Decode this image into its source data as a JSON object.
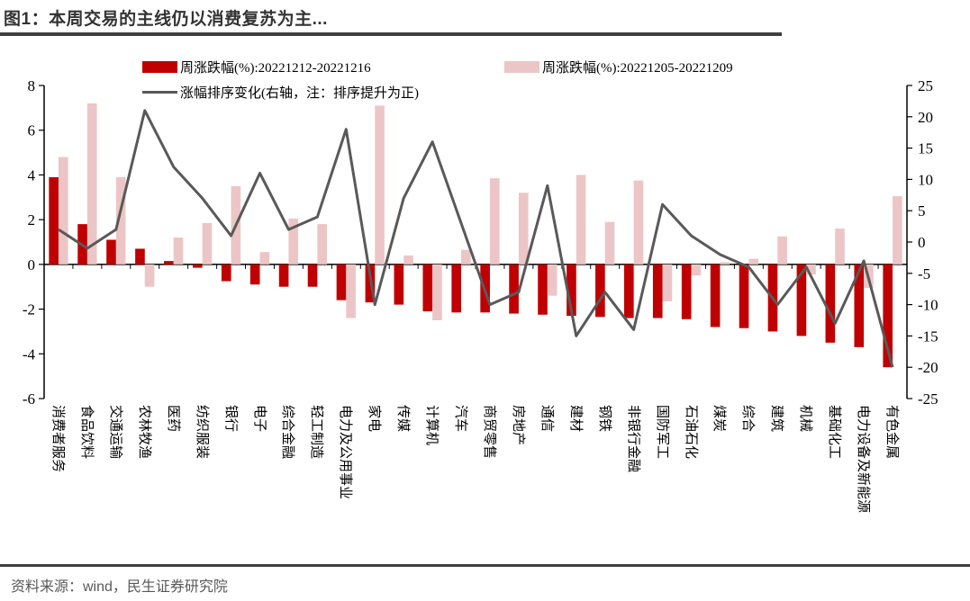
{
  "title": "图1：本周交易的主线仍以消费复苏为主...",
  "footer": {
    "source": "资料来源：wind，民生证券研究院"
  },
  "colors": {
    "current_week_bar": "#C00000",
    "prev_week_bar": "#ECC6C6",
    "rank_line": "#595959",
    "rule": "#3F3F3F"
  },
  "legend": {
    "items": [
      {
        "label": "周涨跌幅(%):20221212-20221216",
        "type": "bar",
        "color": "#C00000"
      },
      {
        "label": "周涨跌幅(%):20221205-20221209",
        "type": "bar",
        "color": "#ECC6C6"
      },
      {
        "label": "涨幅排序变化(右轴，注：排序提升为正)",
        "type": "line",
        "color": "#595959"
      }
    ]
  },
  "chart_data": {
    "type": "bar",
    "subtype": "grouped bars + line on secondary axis",
    "categories": [
      "消费者服务",
      "食品饮料",
      "交通运输",
      "农林牧渔",
      "医药",
      "纺织服装",
      "银行",
      "电子",
      "综合金融",
      "轻工制造",
      "电力及公用事业",
      "家电",
      "传媒",
      "计算机",
      "汽车",
      "商贸零售",
      "房地产",
      "通信",
      "建材",
      "钢铁",
      "非银行金融",
      "国防军工",
      "石油石化",
      "煤炭",
      "综合",
      "建筑",
      "机械",
      "基础化工",
      "电力设备及新能源",
      "有色金属"
    ],
    "series": [
      {
        "name": "周涨跌幅(%):20221212-20221216",
        "type": "bar",
        "axis": "left",
        "color": "#C00000",
        "values": [
          3.9,
          1.8,
          1.1,
          0.7,
          0.15,
          -0.15,
          -0.75,
          -0.9,
          -1.0,
          -1.0,
          -1.6,
          -1.7,
          -1.8,
          -2.1,
          -2.15,
          -2.15,
          -2.2,
          -2.25,
          -2.3,
          -2.35,
          -2.4,
          -2.4,
          -2.45,
          -2.8,
          -2.85,
          -3.0,
          -3.2,
          -3.5,
          -3.7,
          -4.6
        ]
      },
      {
        "name": "周涨跌幅(%):20221205-20221209",
        "type": "bar",
        "axis": "left",
        "color": "#ECC6C6",
        "values": [
          4.8,
          7.2,
          3.9,
          -1.0,
          1.2,
          1.85,
          3.5,
          0.55,
          2.05,
          1.8,
          -2.4,
          7.1,
          0.4,
          -2.5,
          0.65,
          3.85,
          3.2,
          -1.4,
          4.0,
          1.9,
          3.75,
          -1.65,
          -0.5,
          0.1,
          0.25,
          1.25,
          -0.45,
          1.6,
          -1.05,
          3.05
        ]
      },
      {
        "name": "涨幅排序变化(右轴，注：排序提升为正)",
        "type": "line",
        "axis": "right",
        "color": "#595959",
        "values": [
          2,
          -1,
          2,
          21,
          12,
          7,
          1,
          11,
          2,
          4,
          18,
          -10,
          7,
          16,
          3,
          -10,
          -8,
          9,
          -15,
          -8,
          -14,
          6,
          1,
          -2,
          -4,
          -10,
          -4,
          -13,
          -3,
          -20
        ]
      }
    ],
    "left_axis": {
      "min": -6,
      "max": 8,
      "step": 2,
      "ticks": [
        "8",
        "6",
        "4",
        "2",
        "0",
        "-2",
        "-4",
        "-6"
      ]
    },
    "right_axis": {
      "min": -25,
      "max": 25,
      "step": 5,
      "ticks": [
        "25",
        "20",
        "15",
        "10",
        "5",
        "0",
        "-5",
        "-10",
        "-15",
        "-20",
        "-25"
      ]
    },
    "grid": false,
    "legend_position": "top"
  }
}
